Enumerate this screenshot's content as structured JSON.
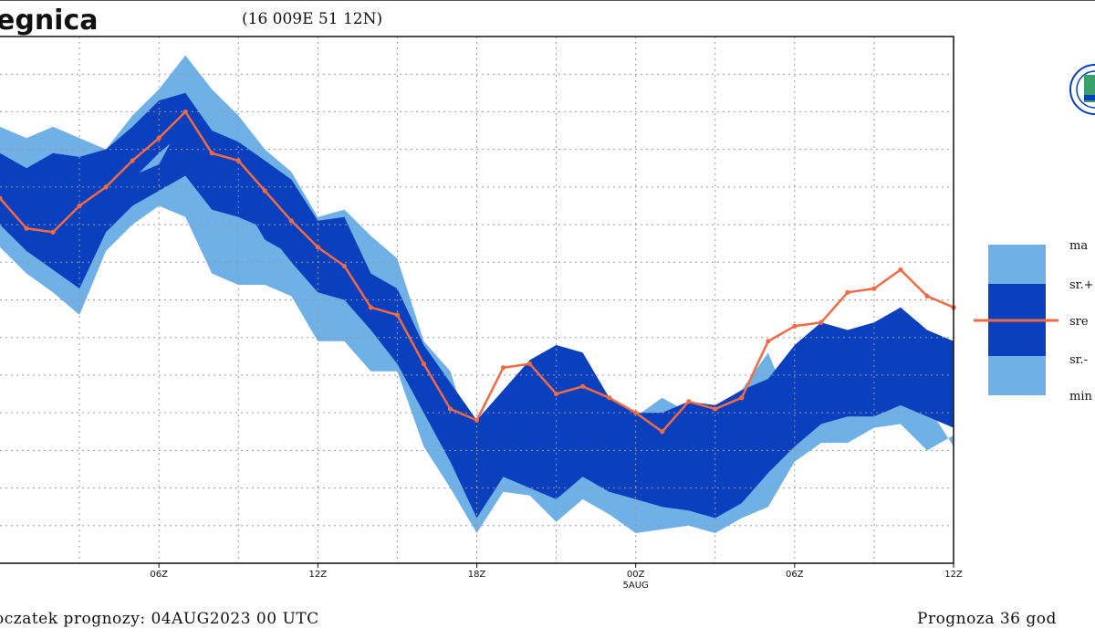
{
  "header": {
    "title": "egnica",
    "coordinates": "(16 009E 51 12N)"
  },
  "footer": {
    "start_label": "oczatek prognozy: 04AUG2023 00 UTC",
    "forecast_label": "Prognoza 36 god"
  },
  "colors": {
    "light_band": "#6fb0e6",
    "dark_band": "#0a3fbd",
    "median_line": "#f06a44",
    "grid": "#9a9a9a"
  },
  "chart_data": {
    "type": "area",
    "title": "egnica",
    "subtitle": "(16 009E 51 12N)",
    "x_unit": "hours",
    "x_ticks": [
      {
        "hour": 6,
        "label": "06Z"
      },
      {
        "hour": 12,
        "label": "12Z"
      },
      {
        "hour": 18,
        "label": "18Z"
      },
      {
        "hour": 24,
        "label": "00Z",
        "sublabel": "5AUG"
      },
      {
        "hour": 30,
        "label": "06Z"
      },
      {
        "hour": 36,
        "label": "12Z"
      }
    ],
    "xlim": [
      0,
      36
    ],
    "ylim": [
      0,
      14
    ],
    "grid": true,
    "legend": {
      "placement": "right",
      "entries": [
        "ma",
        "sr.+",
        "sre",
        "sr.-",
        "min"
      ]
    },
    "x": [
      0,
      1,
      2,
      3,
      4,
      5,
      6,
      7,
      8,
      9,
      10,
      11,
      12,
      13,
      14,
      15,
      16,
      17,
      18,
      19,
      20,
      21,
      22,
      23,
      24,
      25,
      26,
      27,
      28,
      29,
      30,
      31,
      32,
      33,
      34,
      35,
      36
    ],
    "series": [
      {
        "values": [
          11.6,
          11.3,
          11.6,
          11.3,
          11.0,
          11.9,
          12.6,
          13.5,
          12.6,
          11.9,
          11.0,
          10.4,
          9.2,
          9.4,
          8.7,
          8.1,
          5.9,
          5.1,
          2.9,
          4.4,
          4.6,
          4.2,
          3.3,
          2.5,
          3.9,
          4.4,
          4.0,
          3.6,
          4.6,
          5.6,
          3.9,
          4.2,
          4.6,
          5.1,
          5.4,
          4.2,
          3.1
        ]
      },
      {
        "values": [
          10.9,
          10.5,
          10.9,
          10.8,
          11.0,
          11.6,
          12.3,
          12.5,
          11.5,
          11.2,
          10.7,
          10.2,
          9.1,
          9.2,
          7.7,
          7.3,
          5.8,
          4.8,
          3.8,
          4.6,
          5.4,
          5.8,
          5.6,
          4.4,
          4.0,
          4.0,
          4.3,
          4.2,
          4.6,
          4.9,
          5.8,
          6.4,
          6.2,
          6.4,
          6.8,
          6.2,
          5.9
        ]
      },
      {
        "values": [
          10.0,
          9.8,
          9.9,
          9.6,
          10.2,
          10.3,
          10.6,
          11.9,
          10.4,
          10.0,
          8.9,
          8.5,
          7.9,
          7.8,
          7.0,
          6.1,
          4.7,
          3.7,
          3.1,
          3.6,
          4.0,
          4.2,
          3.9,
          3.7,
          3.5,
          3.2,
          3.6,
          3.7,
          4.1,
          4.6,
          5.4,
          5.7,
          5.9,
          6.1,
          6.8,
          6.1,
          5.4
        ]
      },
      {
        "values": [
          9.7,
          8.9,
          8.8,
          9.5,
          10.0,
          10.7,
          11.3,
          12.0,
          10.9,
          10.7,
          9.9,
          9.1,
          8.4,
          7.9,
          6.8,
          6.6,
          5.3,
          4.1,
          3.8,
          5.2,
          5.3,
          4.5,
          4.7,
          4.4,
          4.0,
          3.5,
          4.3,
          4.1,
          4.4,
          5.9,
          6.3,
          6.4,
          7.2,
          7.3,
          7.8,
          7.1,
          6.8
        ]
      },
      {
        "values": [
          9.3,
          8.7,
          8.6,
          8.4,
          9.2,
          10.2,
          10.9,
          11.5,
          10.1,
          9.8,
          8.6,
          8.2,
          7.6,
          7.4,
          6.7,
          5.8,
          4.6,
          3.4,
          2.3,
          3.0,
          2.8,
          2.5,
          2.9,
          3.1,
          2.6,
          2.4,
          2.2,
          2.1,
          2.5,
          3.2,
          4.3,
          4.6,
          4.9,
          5.0,
          5.2,
          5.0,
          4.8
        ]
      },
      {
        "values": [
          9.0,
          8.3,
          7.8,
          7.3,
          8.8,
          9.5,
          9.9,
          10.3,
          9.4,
          9.2,
          8.9,
          8.0,
          7.2,
          7.0,
          6.2,
          5.3,
          4.0,
          2.7,
          1.2,
          2.3,
          2.0,
          1.7,
          2.3,
          1.9,
          1.7,
          1.5,
          1.4,
          1.2,
          1.6,
          2.4,
          3.1,
          3.7,
          3.9,
          3.9,
          4.2,
          3.9,
          3.6
        ]
      },
      {
        "values": [
          8.4,
          7.7,
          7.2,
          6.6,
          8.3,
          9.0,
          9.5,
          9.2,
          7.7,
          7.4,
          7.4,
          7.1,
          5.9,
          5.9,
          5.1,
          5.1,
          3.1,
          2.0,
          0.8,
          1.9,
          1.8,
          1.1,
          1.7,
          1.3,
          0.8,
          0.9,
          1.0,
          0.8,
          1.2,
          1.5,
          2.7,
          3.2,
          3.2,
          3.6,
          3.7,
          3.0,
          3.4
        ]
      }
    ]
  }
}
